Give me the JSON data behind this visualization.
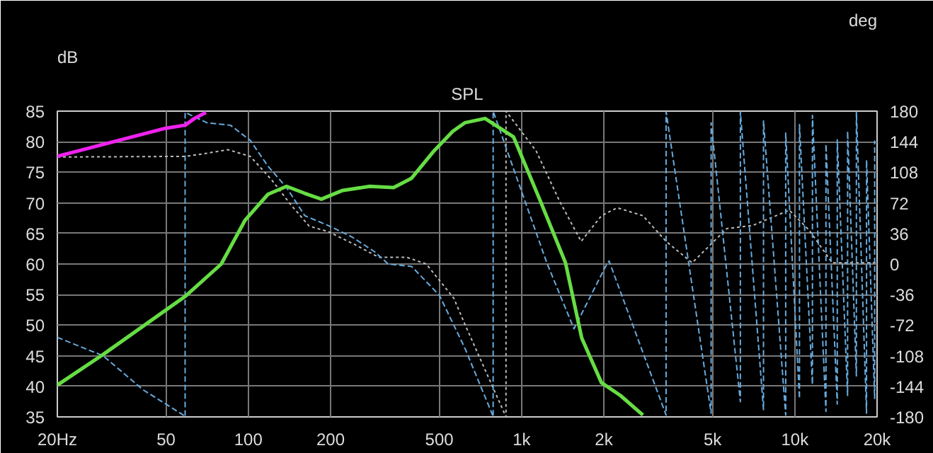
{
  "chart_data": {
    "type": "line",
    "title": "SPL",
    "ylabel": "dB",
    "y2label": "deg",
    "log": "x",
    "grid": true,
    "xlim": [
      20,
      20000
    ],
    "xticks": [
      {
        "value": 20,
        "label": "20Hz"
      },
      50,
      100,
      200,
      500,
      {
        "value": 1000,
        "label": "1k"
      },
      {
        "value": 2000,
        "label": "2k"
      },
      {
        "value": 5000,
        "label": "5k"
      },
      {
        "value": 10000,
        "label": "10k"
      },
      {
        "value": 20000,
        "label": "20k"
      }
    ],
    "ylim": [
      35,
      85
    ],
    "yticks": [
      35,
      40,
      45,
      50,
      55,
      60,
      65,
      70,
      75,
      80,
      85
    ],
    "y2lim": [
      -180,
      180
    ],
    "y2ticks": [
      -180,
      -144,
      -108,
      -72,
      -36,
      0,
      36,
      72,
      108,
      144,
      180
    ],
    "series": [
      {
        "color": "#bbbbbb",
        "line_style": "dotted",
        "x": [
          20,
          58.7,
          68.1,
          84.2,
          101.7,
          122,
          143,
          167,
          196,
          245,
          300,
          380,
          448,
          565,
          618,
          877,
          877,
          1130,
          1380,
          1652,
          1960,
          2239,
          2780,
          3380,
          4210,
          5640,
          7000,
          9550,
          11300,
          13700,
          20000
        ],
        "values": [
          77.5,
          77.6,
          78,
          78.7,
          77.6,
          73.7,
          69.7,
          66.2,
          65.3,
          63.2,
          61.1,
          61.1,
          60,
          54.4,
          50.3,
          35,
          85,
          78.5,
          70.2,
          63.7,
          67.9,
          69.2,
          67.9,
          63.7,
          60.2,
          65.8,
          66.3,
          68.8,
          65.5,
          60.2,
          60.2
        ]
      },
      {
        "color": "#66aadd",
        "line_style": "dashed",
        "x": [
          20,
          29.4,
          41.3,
          57.4,
          58.7,
          58.7,
          70.5,
          86,
          101.7,
          118,
          138,
          161,
          196,
          240,
          290,
          325,
          396,
          500,
          618,
          780,
          787,
          787,
          1237,
          1555,
          2030,
          2090,
          3380,
          3380,
          4940,
          4940,
          6320,
          6320,
          7680,
          7680,
          9260,
          9260,
          10400,
          10400,
          11600,
          11600,
          13000,
          13000,
          14300,
          14300,
          15600,
          15600,
          16800,
          16800,
          18300,
          18300,
          19600,
          19600
        ],
        "values": [
          48,
          45,
          39.4,
          35.4,
          35,
          84.8,
          83.1,
          82.7,
          80.2,
          76,
          72.5,
          67.9,
          66.3,
          64.4,
          62,
          60,
          59.6,
          54.9,
          46.4,
          35.5,
          35,
          85,
          60.2,
          49.4,
          59.6,
          60.5,
          35.3,
          84.9,
          35.6,
          83.1,
          37.5,
          84.9,
          36.2,
          83.4,
          35.3,
          81.4,
          38,
          82.8,
          40.3,
          84.3,
          35.9,
          79.6,
          37.1,
          80.3,
          38.5,
          81.7,
          41.7,
          84.9,
          35.6,
          77,
          38,
          80.2
        ]
      },
      {
        "color": "#ee22ee",
        "line_style": "solid",
        "x": [
          20,
          49.8,
          58.7,
          63.5,
          70
        ],
        "values": [
          77.6,
          82.2,
          82.7,
          83.8,
          84.8
        ]
      },
      {
        "color": "#66dd44",
        "line_style": "solid",
        "x": [
          20,
          29.4,
          58.7,
          79.6,
          97.4,
          118,
          138,
          160,
          185,
          220,
          278,
          340,
          395,
          478,
          560,
          620,
          735,
          934,
          1174,
          1448,
          1660,
          1960,
          2300,
          2780
        ],
        "values": [
          40.2,
          45.2,
          54.7,
          60,
          67.2,
          71.4,
          72.7,
          71.6,
          70.6,
          72,
          72.7,
          72.5,
          74,
          78.5,
          81.7,
          83.1,
          83.8,
          80.8,
          70.2,
          60.2,
          47.9,
          40.6,
          38.5,
          35.3
        ]
      }
    ]
  }
}
